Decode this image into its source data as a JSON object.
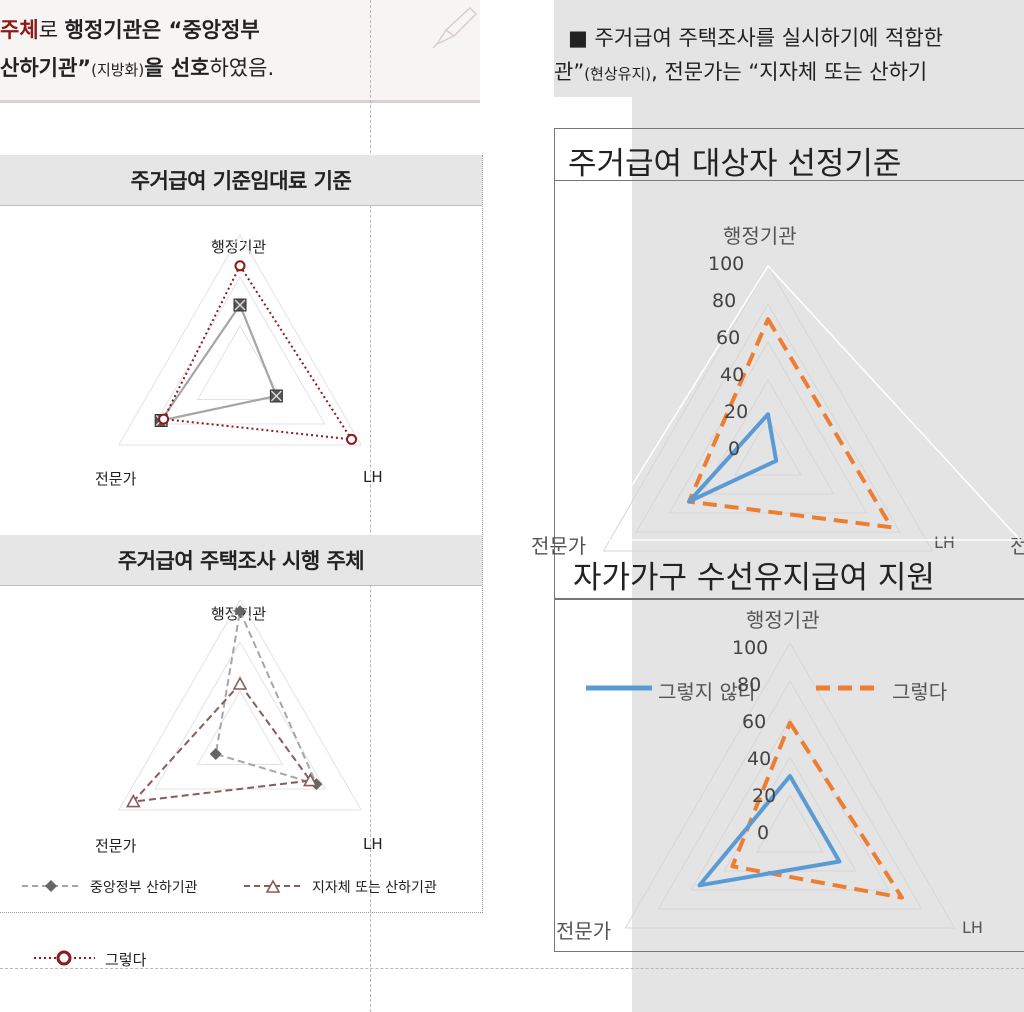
{
  "header_left": {
    "line1_red": "주체",
    "line1_mid": "로 ",
    "line1_bold": "행정기관은 “중앙정부",
    "line2_bold": "산하기관”",
    "line2_small": "(지방화)",
    "line2_b2": "을 ",
    "line2_bold2": "선호",
    "line2_end": "하였음."
  },
  "header_right": {
    "line1": "■ 주거급여 주택조사를 실시하기에 적합한",
    "line2_a": "관”",
    "line2_small": "(현상유지)",
    "line2_b": ", 전문가는 “지자체 또는 산하기"
  },
  "left_chart1": {
    "title": "주거급여 기준임대료 기준",
    "axes": [
      "행정기관",
      "LH",
      "전문가"
    ]
  },
  "left_chart2": {
    "title": "주거급여 주택조사 시행 주체",
    "axes": [
      "행정기관",
      "LH",
      "전문가"
    ],
    "legend": [
      "중앙정부 산하기관",
      "지자체 또는 산하기관"
    ]
  },
  "left_bottom_legend": {
    "label": "그렇다"
  },
  "right_chart1": {
    "title": "주거급여 대상자 선정기준",
    "axes": [
      "행정기관",
      "LH",
      "전문가"
    ],
    "ticks": [
      "100",
      "80",
      "60",
      "40",
      "20",
      "0"
    ],
    "clip_label": "전"
  },
  "right_chart2": {
    "title": "자가가구 수선유지급여 지원",
    "axes": [
      "행정기관",
      "LH",
      "전문가"
    ],
    "ticks": [
      "100",
      "80",
      "60",
      "40",
      "20",
      "0"
    ],
    "legend": [
      "그렇지 않다",
      "그렇다"
    ]
  },
  "colors": {
    "dark_red": "#8b1a1a",
    "gray_series": "#a6a6a6",
    "mauve_series": "#8c5a5a",
    "blue_series": "#5b9bd5",
    "orange_series": "#ed7d31",
    "grid": "#d9d9d9"
  },
  "chart_data": [
    {
      "type": "radar",
      "title": "주거급여 기준임대료 기준",
      "categories": [
        "행정기관",
        "LH",
        "전문가"
      ],
      "series": [
        {
          "name": "",
          "values": [
            50,
            30,
            65
          ]
        },
        {
          "name": "그렇다",
          "values": [
            78,
            92,
            63
          ]
        }
      ]
    },
    {
      "type": "radar",
      "title": "주거급여 주택조사 시행 주체",
      "categories": [
        "행정기관",
        "LH",
        "전문가"
      ],
      "series": [
        {
          "name": "중앙정부 산하기관",
          "values": [
            92,
            63,
            20
          ]
        },
        {
          "name": "지자체 또는 산하기관",
          "values": [
            40,
            58,
            88
          ]
        }
      ]
    },
    {
      "type": "radar",
      "title": "주거급여 대상자 선정기준",
      "categories": [
        "행정기관",
        "LH",
        "전문가"
      ],
      "ylim": [
        0,
        100
      ],
      "series": [
        {
          "name": "그렇지 않다",
          "values": [
            22,
            5,
            48
          ]
        },
        {
          "name": "그렇다",
          "values": [
            72,
            75,
            48
          ]
        }
      ]
    },
    {
      "type": "radar",
      "title": "자가가구 수선유지급여 지원",
      "categories": [
        "행정기관",
        "LH",
        "전문가"
      ],
      "ylim": [
        0,
        100
      ],
      "series": [
        {
          "name": "그렇지 않다",
          "values": [
            30,
            30,
            55
          ]
        },
        {
          "name": "그렇다",
          "values": [
            58,
            68,
            35
          ]
        }
      ]
    }
  ]
}
